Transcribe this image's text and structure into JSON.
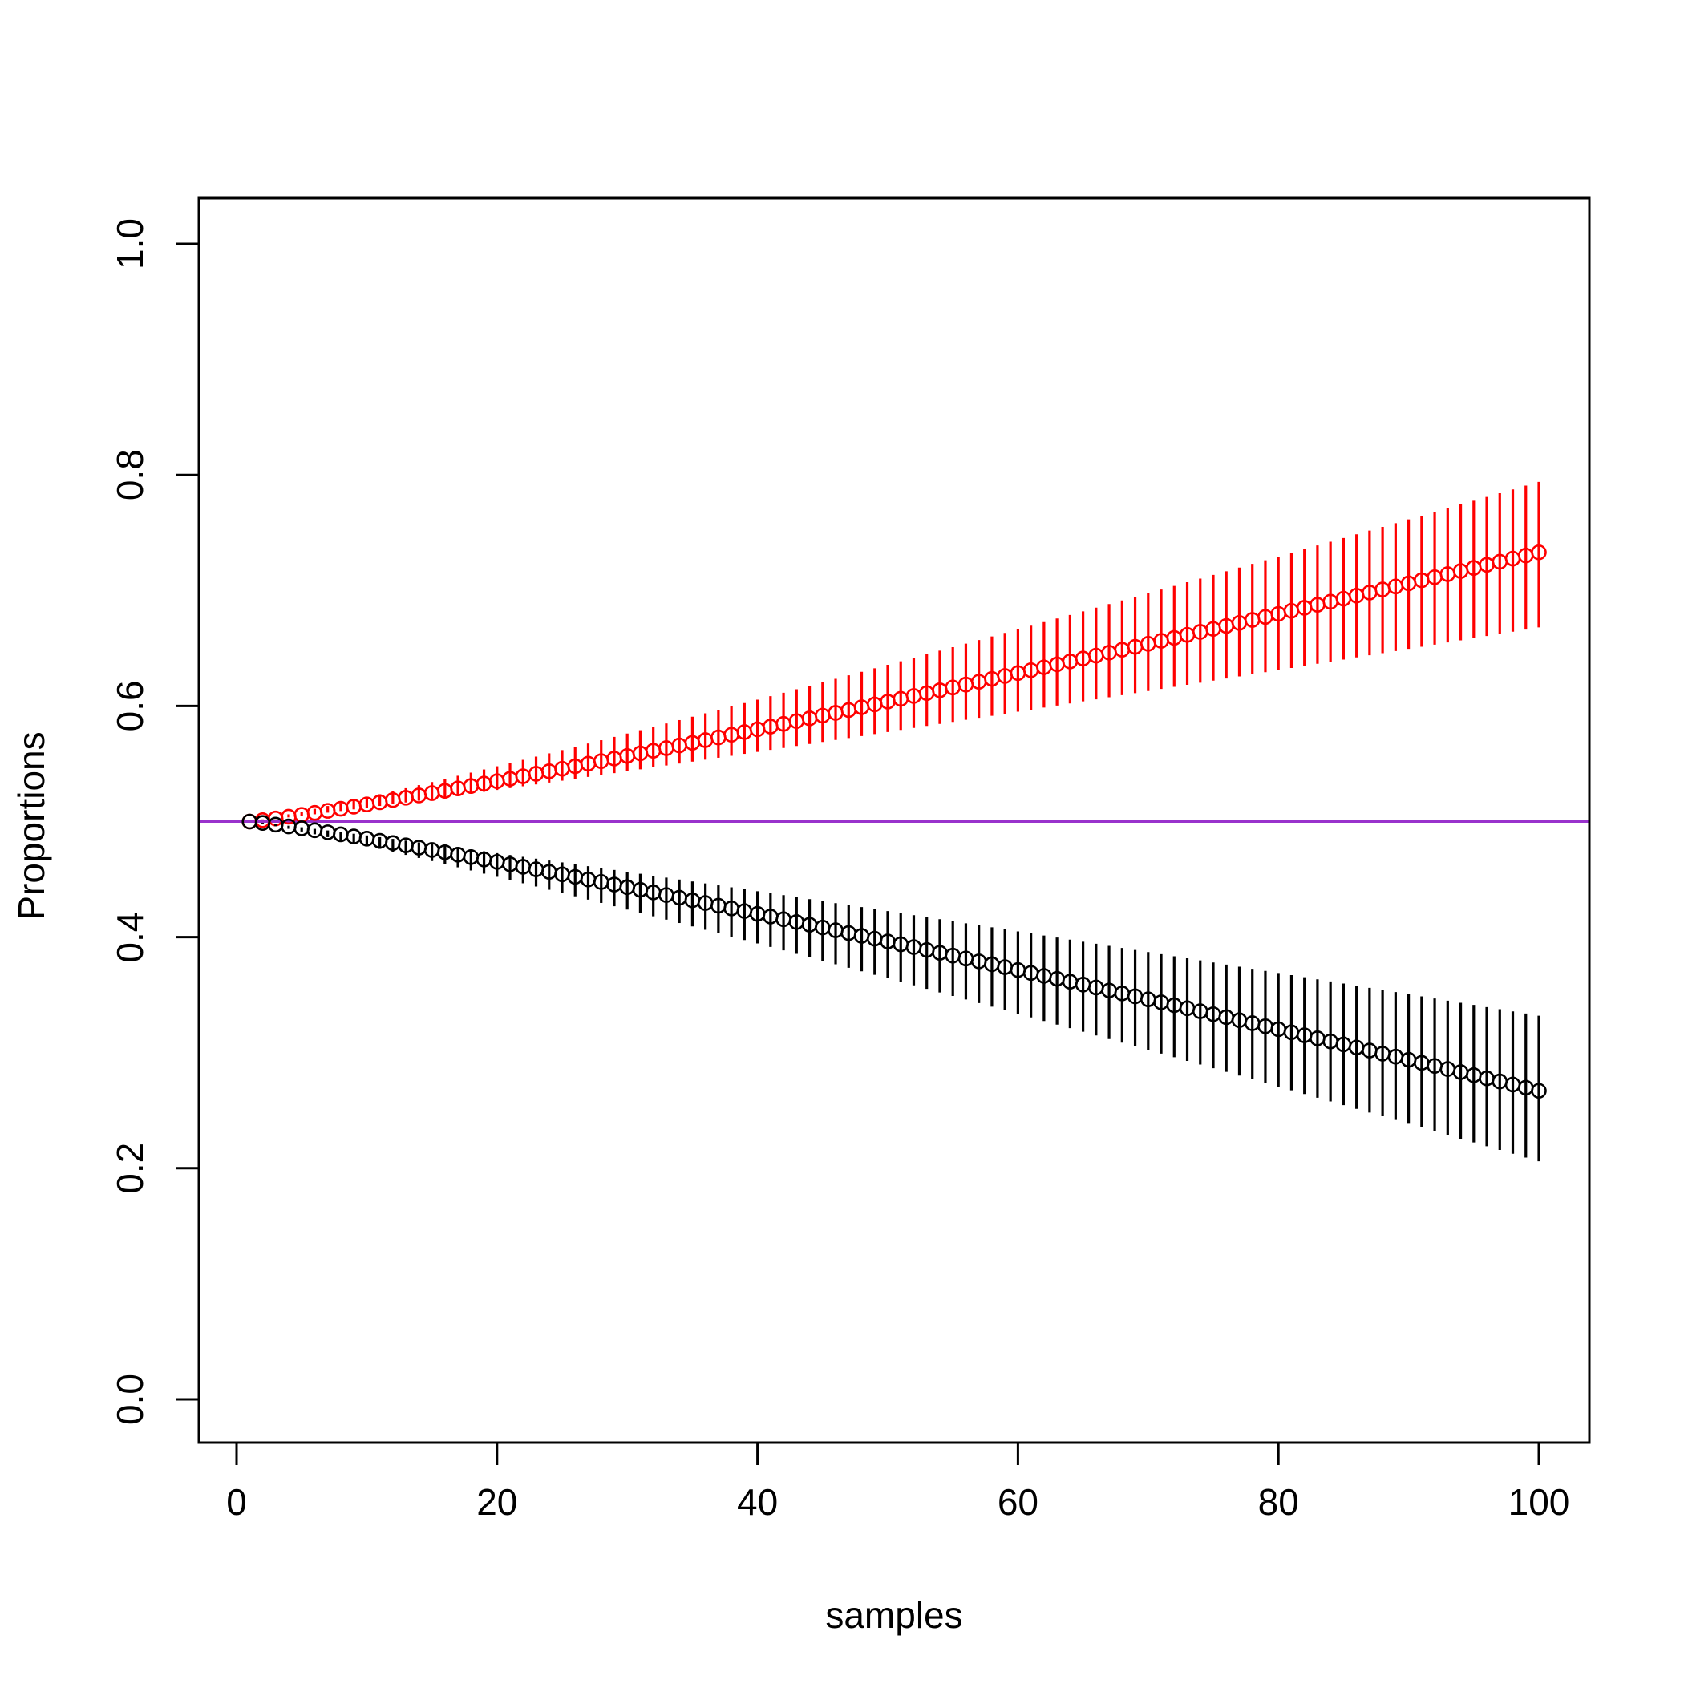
{
  "chart_data": {
    "type": "scatter",
    "title": "",
    "xlabel": "samples",
    "ylabel": "Proportions",
    "xlim": [
      -3,
      104
    ],
    "ylim": [
      -0.04,
      1.04
    ],
    "x_ticks": [
      "0",
      "20",
      "40",
      "60",
      "80",
      "100"
    ],
    "y_ticks": [
      "0.0",
      "0.2",
      "0.4",
      "0.6",
      "0.8",
      "1.0"
    ],
    "grid": false,
    "legend": "none",
    "n_points": 100,
    "reference_line": {
      "y": 0.5,
      "color": "#9932CC"
    },
    "series": [
      {
        "color": "#FF0000",
        "marker": "open-circle",
        "y_start": 0.5,
        "y_end": 0.733,
        "err_low_start": 0.5,
        "err_low_end": 0.668,
        "err_high_start": 0.5,
        "err_high_end": 0.794
      },
      {
        "color": "#000000",
        "marker": "open-circle",
        "y_start": 0.5,
        "y_end": 0.267,
        "err_low_start": 0.5,
        "err_low_end": 0.206,
        "err_high_start": 0.5,
        "err_high_end": 0.332
      }
    ]
  }
}
